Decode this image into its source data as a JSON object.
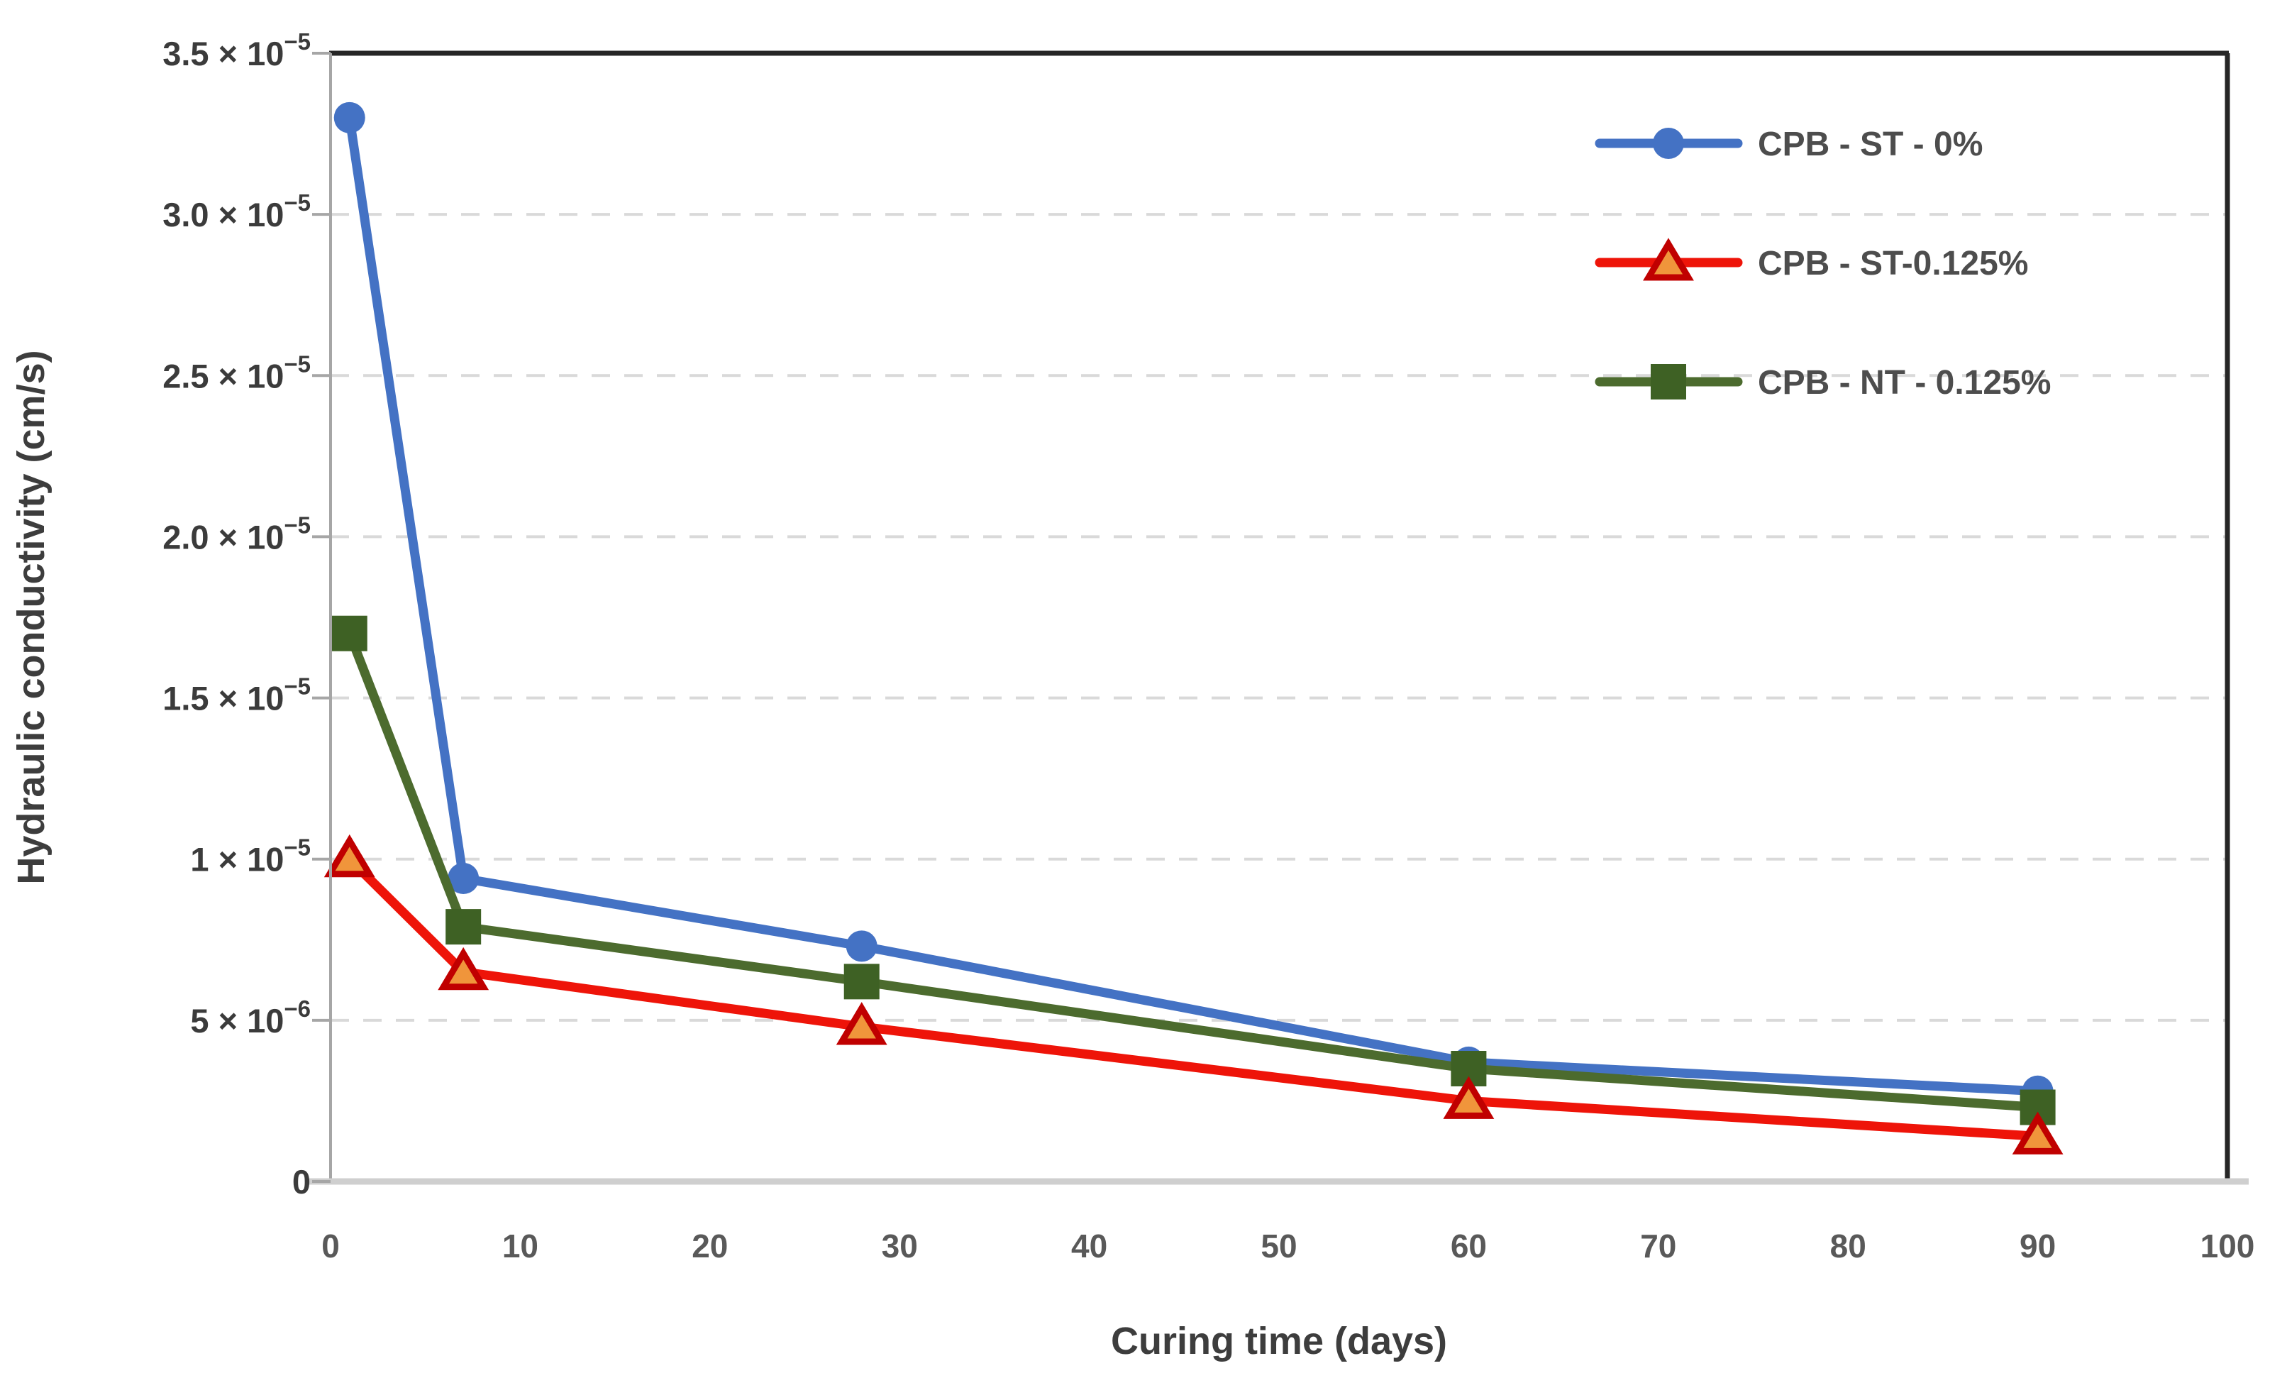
{
  "chart_data": {
    "type": "line",
    "title": "",
    "xlabel": "Curing time (days)",
    "ylabel": "Hydraulic conductivity (cm/s)",
    "xlim": [
      0,
      100
    ],
    "ylim": [
      0,
      3.5e-05
    ],
    "grid": "horizontal-dashed",
    "legend_position": "top-right-inside",
    "x_ticks": [
      0,
      10,
      20,
      30,
      40,
      50,
      60,
      70,
      80,
      90,
      100
    ],
    "y_ticks": [
      {
        "value": 3.5e-05,
        "label": "3.5 × 10",
        "sup": "−5"
      },
      {
        "value": 3e-05,
        "label": "3.0 × 10",
        "sup": "−5"
      },
      {
        "value": 2.5e-05,
        "label": "2.5 × 10",
        "sup": "−5"
      },
      {
        "value": 2e-05,
        "label": "2.0 × 10",
        "sup": "−5"
      },
      {
        "value": 1.5e-05,
        "label": "1.5 × 10",
        "sup": "−5"
      },
      {
        "value": 1e-05,
        "label": "1 × 10",
        "sup": "−5"
      },
      {
        "value": 5e-06,
        "label": "5 × 10",
        "sup": "−6"
      },
      {
        "value": 0,
        "label": "0",
        "sup": ""
      }
    ],
    "x": [
      1,
      7,
      28,
      60,
      90
    ],
    "series": [
      {
        "name": "CPB - ST - 0%",
        "marker": "circle",
        "line_color": "#4472C4",
        "marker_fill": "#4472C4",
        "marker_stroke": "#4472C4",
        "values": [
          3.3e-05,
          9.4e-06,
          7.3e-06,
          3.7e-06,
          2.8e-06
        ]
      },
      {
        "name": "CPB - ST-0.125%",
        "marker": "triangle",
        "line_color": "#EE1409",
        "marker_fill": "#F0953B",
        "marker_stroke": "#C00000",
        "values": [
          1e-05,
          6.5e-06,
          4.8e-06,
          2.5e-06,
          1.4e-06
        ]
      },
      {
        "name": "CPB - NT - 0.125%",
        "marker": "square",
        "line_color": "#4C6B2E",
        "marker_fill": "#3E6124",
        "marker_stroke": "#3E6124",
        "values": [
          1.7e-05,
          7.9e-06,
          6.2e-06,
          3.5e-06,
          2.3e-06
        ]
      }
    ],
    "colors": {
      "gridline": "#D9D9D9",
      "border_dark": "#262626",
      "axis_left": "#A6A6A6",
      "axis_bottom": "#CFCFCF",
      "tick": "#A6A6A6"
    }
  }
}
